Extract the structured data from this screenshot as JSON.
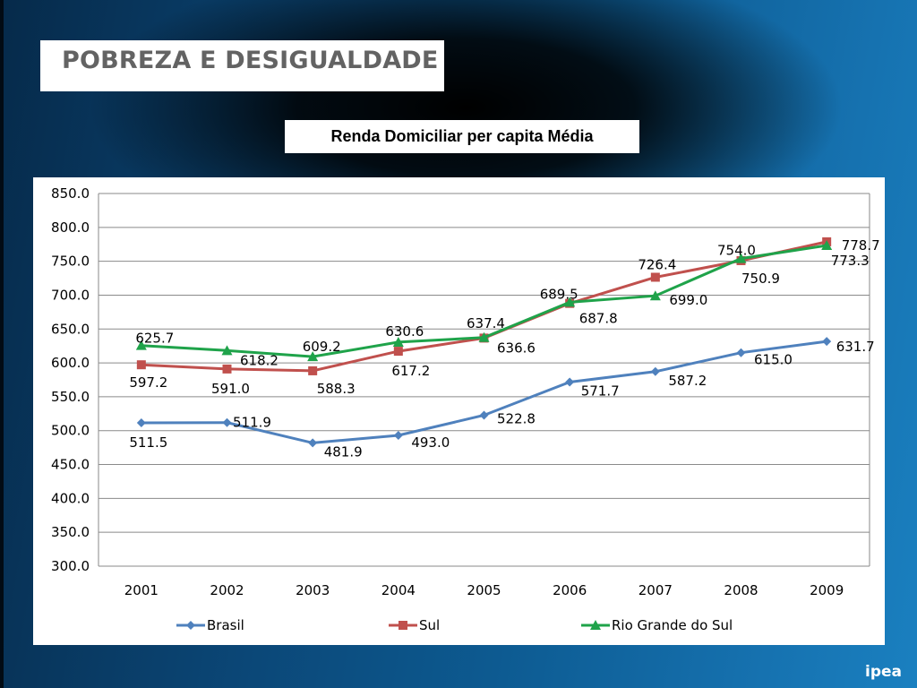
{
  "header": {
    "title": "POBREZA E DESIGUALDADE",
    "logo": "ipea"
  },
  "chart_data": {
    "type": "line",
    "title": "Renda Domiciliar per capita Média",
    "xlabel": "",
    "ylabel": "",
    "categories": [
      "2001",
      "2002",
      "2003",
      "2004",
      "2005",
      "2006",
      "2007",
      "2008",
      "2009"
    ],
    "ylim": [
      300,
      850
    ],
    "yticks": [
      "300.0",
      "350.0",
      "400.0",
      "450.0",
      "500.0",
      "550.0",
      "600.0",
      "650.0",
      "700.0",
      "750.0",
      "800.0",
      "850.0"
    ],
    "grid": true,
    "legend": "bottom",
    "series": [
      {
        "name": "Brasil",
        "color": "#4f81bd",
        "marker": "diamond",
        "values": [
          511.5,
          511.9,
          481.9,
          493.0,
          522.8,
          571.7,
          587.2,
          615.0,
          631.7
        ],
        "labels": [
          "511.5",
          "511.9",
          "481.9",
          "493.0",
          "522.8",
          "571.7",
          "587.2",
          "615.0",
          "631.7"
        ]
      },
      {
        "name": "Sul",
        "color": "#c0504d",
        "marker": "square",
        "values": [
          597.2,
          591.0,
          588.3,
          617.2,
          636.6,
          687.8,
          726.4,
          750.9,
          778.7
        ],
        "labels": [
          "597.2",
          "591.0",
          "588.3",
          "617.2",
          "636.6",
          "687.8",
          "726.4",
          "750.9",
          "778.7"
        ]
      },
      {
        "name": "Rio Grande do Sul",
        "color": "#1fa34a",
        "marker": "triangle",
        "values": [
          625.7,
          618.2,
          609.2,
          630.6,
          637.4,
          689.5,
          699.0,
          754.0,
          773.3
        ],
        "labels": [
          "625.7",
          "618.2",
          "609.2",
          "630.6",
          "637.4",
          "689.5",
          "699.0",
          "754.0",
          "773.3"
        ]
      }
    ]
  }
}
